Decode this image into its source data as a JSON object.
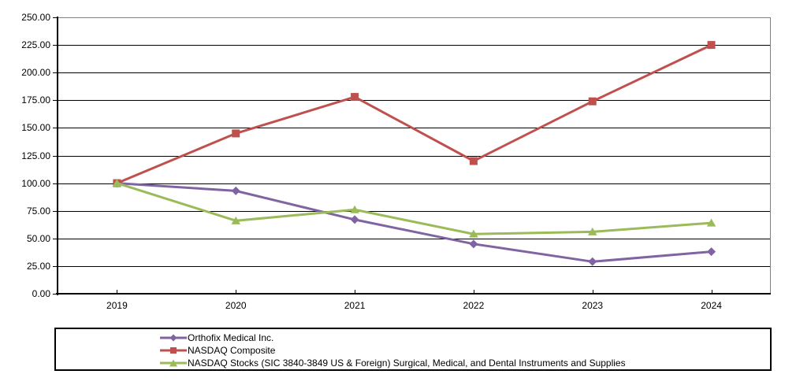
{
  "chart_data": {
    "type": "line",
    "title": "",
    "categories": [
      "2019",
      "2020",
      "2021",
      "2022",
      "2023",
      "2024"
    ],
    "series": [
      {
        "name": "Orthofix Medical Inc.",
        "marker": "diamond",
        "color": "#8064A2",
        "values": [
          100,
          93,
          67,
          45,
          29,
          38
        ]
      },
      {
        "name": "NASDAQ Composite",
        "marker": "square",
        "color": "#C0504D",
        "values": [
          100,
          145,
          178,
          120,
          174,
          225
        ]
      },
      {
        "name": "NASDAQ Stocks (SIC 3840-3849 US & Foreign) Surgical, Medical, and Dental Instruments and Supplies",
        "marker": "triangle",
        "color": "#9BBB59",
        "values": [
          100,
          66,
          76,
          54,
          56,
          64
        ]
      }
    ],
    "xlabel": "",
    "ylabel": "",
    "ylim": [
      0,
      250
    ],
    "ytick_step": 25,
    "ytick_labels": [
      "0.00",
      "25.00",
      "50.00",
      "75.00",
      "100.00",
      "125.00",
      "150.00",
      "175.00",
      "200.00",
      "225.00",
      "250.00"
    ],
    "grid": true,
    "gridline_color": "#000000",
    "frame_color": "#808080",
    "axis_color": "#000000",
    "legend_position": "bottom"
  }
}
